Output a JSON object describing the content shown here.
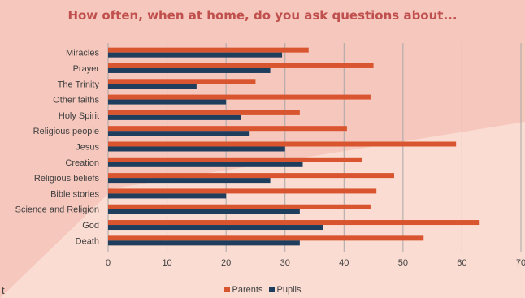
{
  "chart_data": {
    "type": "bar",
    "orientation": "horizontal",
    "title": "How often, when at home, do you ask questions about...",
    "categories": [
      "Miracles",
      "Prayer",
      "The Trinity",
      "Other faiths",
      "Holy Spirit",
      "Religious people",
      "Jesus",
      "Creation",
      "Religious beliefs",
      "Bible stories",
      "Science and Religion",
      "God",
      "Death"
    ],
    "series": [
      {
        "name": "Parents",
        "values": [
          34,
          45,
          25,
          44.5,
          32.5,
          40.5,
          59,
          43,
          48.5,
          45.5,
          44.5,
          63,
          53.5
        ],
        "color": "#d9552f"
      },
      {
        "name": "Pupils",
        "values": [
          29.5,
          27.5,
          15,
          20,
          22.5,
          24,
          30,
          33,
          27.5,
          20,
          32.5,
          36.5,
          32.5
        ],
        "color": "#1f3d5c"
      }
    ],
    "x_ticks": [
      0,
      10,
      20,
      30,
      40,
      50,
      60,
      70
    ],
    "xlim": [
      0,
      70
    ],
    "grid": true,
    "legend_position": "bottom",
    "colors": {
      "title": "#c0504d",
      "background": "#f6c7bd",
      "background_light": "#fbdcd2"
    }
  },
  "stray_text": "t"
}
